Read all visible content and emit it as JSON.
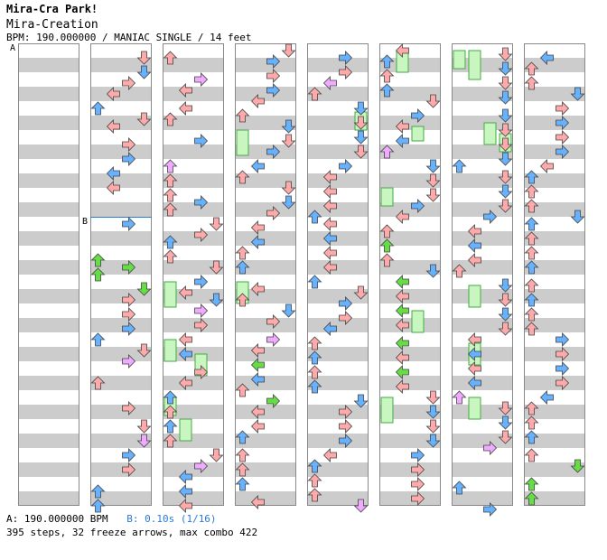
{
  "header": {
    "title": "Mira-Cra Park!",
    "subtitle": "Mira-Creation",
    "info": "BPM: 190.000000 / MANIAC SINGLE / 14 feet"
  },
  "markers": {
    "a": "A",
    "b": "B"
  },
  "footer": {
    "bpm_label": "A: 190.000000 BPM",
    "speed_label": "B: 0.10s (1/16)",
    "stats": "395 steps, 32 freeze arrows, max combo 422"
  },
  "colors": {
    "background": "#ffffff",
    "stripe": "#cccccc",
    "column_border": "#888888",
    "arrow_red": "#ffaaaa",
    "arrow_blue": "#66b2ff",
    "arrow_green": "#66dd44",
    "arrow_violet": "#f0aaff",
    "freeze_body": "#c8f5c0",
    "freeze_border": "#44aa44",
    "speed_text": "#2b7bd6",
    "arrow_stroke": "#444444"
  },
  "chart_data": {
    "type": "step-chart",
    "columns": 8,
    "measures_per_column": 8,
    "rows_per_measure": 16,
    "lanes": [
      "left",
      "down",
      "up",
      "right"
    ],
    "bpm_changes": [
      {
        "measure": 0,
        "label": "A"
      }
    ],
    "speed_changes": [
      {
        "measure": 11,
        "label": "B"
      }
    ],
    "notes": [
      [
        1,
        0,
        2,
        "red"
      ],
      [
        1,
        0,
        6,
        "blue"
      ],
      [
        1,
        0,
        9,
        "red"
      ],
      [
        1,
        0,
        12,
        "red"
      ],
      [
        1,
        1,
        0,
        "blue"
      ],
      [
        1,
        1,
        3,
        "red"
      ],
      [
        1,
        1,
        5,
        "red"
      ],
      [
        1,
        1,
        10,
        "red"
      ],
      [
        1,
        1,
        14,
        "blue"
      ],
      [
        1,
        2,
        2,
        "blue"
      ],
      [
        1,
        2,
        6,
        "red"
      ],
      [
        1,
        3,
        0,
        "blue"
      ],
      [
        1,
        3,
        10,
        "green"
      ],
      [
        1,
        3,
        12,
        "green"
      ],
      [
        1,
        3,
        14,
        "green"
      ],
      [
        1,
        4,
        2,
        "green"
      ],
      [
        1,
        4,
        5,
        "red"
      ],
      [
        1,
        4,
        9,
        "red"
      ],
      [
        1,
        4,
        13,
        "blue"
      ],
      [
        1,
        5,
        0,
        "blue"
      ],
      [
        1,
        5,
        3,
        "red"
      ],
      [
        1,
        5,
        6,
        "violet"
      ],
      [
        1,
        5,
        12,
        "red"
      ],
      [
        1,
        6,
        3,
        "red"
      ],
      [
        1,
        6,
        8,
        "red"
      ],
      [
        1,
        6,
        12,
        "violet"
      ],
      [
        1,
        7,
        0,
        "blue"
      ],
      [
        1,
        7,
        4,
        "red"
      ],
      [
        1,
        7,
        10,
        "blue"
      ],
      [
        1,
        7,
        14,
        "blue"
      ],
      [
        2,
        0,
        2,
        "red"
      ],
      [
        2,
        0,
        8,
        "violet"
      ],
      [
        2,
        0,
        11,
        "red"
      ],
      [
        2,
        1,
        0,
        "red"
      ],
      [
        2,
        1,
        3,
        "red"
      ],
      [
        2,
        1,
        9,
        "blue"
      ],
      [
        2,
        2,
        0,
        "violet"
      ],
      [
        2,
        2,
        4,
        "red"
      ],
      [
        2,
        2,
        8,
        "red"
      ],
      [
        2,
        2,
        10,
        "blue"
      ],
      [
        2,
        2,
        12,
        "red"
      ],
      [
        2,
        3,
        0,
        "red"
      ],
      [
        2,
        3,
        3,
        "red"
      ],
      [
        2,
        3,
        5,
        "blue"
      ],
      [
        2,
        3,
        9,
        "red"
      ],
      [
        2,
        3,
        12,
        "red"
      ],
      [
        2,
        4,
        0,
        "blue"
      ],
      [
        2,
        4,
        3,
        "red"
      ],
      [
        2,
        4,
        5,
        "blue"
      ],
      [
        2,
        4,
        8,
        "violet"
      ],
      [
        2,
        4,
        12,
        "red"
      ],
      [
        2,
        5,
        0,
        "red"
      ],
      [
        2,
        5,
        4,
        "blue"
      ],
      [
        2,
        5,
        9,
        "red"
      ],
      [
        2,
        5,
        12,
        "red"
      ],
      [
        2,
        6,
        0,
        "blue"
      ],
      [
        2,
        6,
        4,
        "red"
      ],
      [
        2,
        6,
        8,
        "blue"
      ],
      [
        2,
        6,
        12,
        "red"
      ],
      [
        2,
        7,
        0,
        "red"
      ],
      [
        2,
        7,
        3,
        "violet"
      ],
      [
        2,
        7,
        6,
        "blue"
      ],
      [
        2,
        7,
        10,
        "blue"
      ],
      [
        2,
        7,
        14,
        "red"
      ],
      [
        3,
        0,
        0,
        "red"
      ],
      [
        3,
        0,
        3,
        "blue"
      ],
      [
        3,
        0,
        7,
        "red"
      ],
      [
        3,
        0,
        11,
        "blue"
      ],
      [
        3,
        0,
        14,
        "red"
      ],
      [
        3,
        1,
        2,
        "red"
      ],
      [
        3,
        1,
        5,
        "blue"
      ],
      [
        3,
        1,
        9,
        "red"
      ],
      [
        3,
        1,
        12,
        "blue"
      ],
      [
        3,
        2,
        0,
        "blue"
      ],
      [
        3,
        2,
        3,
        "red"
      ],
      [
        3,
        2,
        6,
        "red"
      ],
      [
        3,
        2,
        10,
        "blue"
      ],
      [
        3,
        2,
        13,
        "red"
      ],
      [
        3,
        3,
        1,
        "red"
      ],
      [
        3,
        3,
        5,
        "blue"
      ],
      [
        3,
        3,
        8,
        "red"
      ],
      [
        3,
        3,
        12,
        "blue"
      ],
      [
        3,
        4,
        2,
        "red"
      ],
      [
        3,
        4,
        5,
        "red"
      ],
      [
        3,
        4,
        8,
        "blue"
      ],
      [
        3,
        4,
        11,
        "red"
      ],
      [
        3,
        5,
        0,
        "violet"
      ],
      [
        3,
        5,
        3,
        "red"
      ],
      [
        3,
        5,
        7,
        "green"
      ],
      [
        3,
        5,
        11,
        "blue"
      ],
      [
        3,
        5,
        14,
        "red"
      ],
      [
        3,
        6,
        1,
        "green"
      ],
      [
        3,
        6,
        4,
        "red"
      ],
      [
        3,
        6,
        8,
        "red"
      ],
      [
        3,
        6,
        11,
        "blue"
      ],
      [
        3,
        7,
        0,
        "red"
      ],
      [
        3,
        7,
        4,
        "red"
      ],
      [
        3,
        7,
        8,
        "blue"
      ],
      [
        3,
        7,
        13,
        "red"
      ],
      [
        4,
        0,
        2,
        "blue"
      ],
      [
        4,
        0,
        6,
        "red"
      ],
      [
        4,
        0,
        9,
        "violet"
      ],
      [
        4,
        0,
        12,
        "red"
      ],
      [
        4,
        1,
        0,
        "blue"
      ],
      [
        4,
        1,
        4,
        "red"
      ],
      [
        4,
        1,
        8,
        "blue"
      ],
      [
        4,
        1,
        12,
        "red"
      ],
      [
        4,
        2,
        0,
        "blue"
      ],
      [
        4,
        2,
        3,
        "red"
      ],
      [
        4,
        2,
        7,
        "red"
      ],
      [
        4,
        2,
        11,
        "red"
      ],
      [
        4,
        2,
        14,
        "blue"
      ],
      [
        4,
        3,
        0,
        "red"
      ],
      [
        4,
        3,
        4,
        "blue"
      ],
      [
        4,
        3,
        8,
        "red"
      ],
      [
        4,
        3,
        12,
        "red"
      ],
      [
        4,
        4,
        0,
        "blue"
      ],
      [
        4,
        4,
        3,
        "red"
      ],
      [
        4,
        4,
        6,
        "blue"
      ],
      [
        4,
        4,
        10,
        "red"
      ],
      [
        4,
        4,
        13,
        "blue"
      ],
      [
        4,
        5,
        1,
        "red"
      ],
      [
        4,
        5,
        5,
        "blue"
      ],
      [
        4,
        5,
        9,
        "red"
      ],
      [
        4,
        5,
        13,
        "blue"
      ],
      [
        4,
        6,
        1,
        "blue"
      ],
      [
        4,
        6,
        4,
        "red"
      ],
      [
        4,
        6,
        8,
        "red"
      ],
      [
        4,
        6,
        12,
        "blue"
      ],
      [
        4,
        7,
        0,
        "red"
      ],
      [
        4,
        7,
        3,
        "blue"
      ],
      [
        4,
        7,
        7,
        "red"
      ],
      [
        4,
        7,
        11,
        "red"
      ],
      [
        4,
        7,
        14,
        "violet"
      ],
      [
        5,
        0,
        0,
        "red"
      ],
      [
        5,
        0,
        3,
        "blue"
      ],
      [
        5,
        0,
        7,
        "red"
      ],
      [
        5,
        0,
        11,
        "blue"
      ],
      [
        5,
        0,
        14,
        "red"
      ],
      [
        5,
        1,
        2,
        "blue"
      ],
      [
        5,
        1,
        5,
        "red"
      ],
      [
        5,
        1,
        9,
        "blue"
      ],
      [
        5,
        1,
        12,
        "violet"
      ],
      [
        5,
        2,
        0,
        "blue"
      ],
      [
        5,
        2,
        4,
        "red"
      ],
      [
        5,
        2,
        8,
        "red"
      ],
      [
        5,
        2,
        11,
        "blue"
      ],
      [
        5,
        2,
        14,
        "red"
      ],
      [
        5,
        3,
        2,
        "red"
      ],
      [
        5,
        3,
        6,
        "green"
      ],
      [
        5,
        3,
        10,
        "red"
      ],
      [
        5,
        3,
        13,
        "blue"
      ],
      [
        5,
        4,
        0,
        "green"
      ],
      [
        5,
        4,
        4,
        "red"
      ],
      [
        5,
        4,
        8,
        "green"
      ],
      [
        5,
        4,
        12,
        "red"
      ],
      [
        5,
        5,
        1,
        "green"
      ],
      [
        5,
        5,
        5,
        "red"
      ],
      [
        5,
        5,
        9,
        "green"
      ],
      [
        5,
        5,
        13,
        "red"
      ],
      [
        5,
        6,
        0,
        "red"
      ],
      [
        5,
        6,
        4,
        "blue"
      ],
      [
        5,
        6,
        8,
        "red"
      ],
      [
        5,
        6,
        12,
        "blue"
      ],
      [
        5,
        7,
        0,
        "blue"
      ],
      [
        5,
        7,
        4,
        "red"
      ],
      [
        5,
        7,
        8,
        "red"
      ],
      [
        5,
        7,
        12,
        "red"
      ],
      [
        6,
        0,
        1,
        "red"
      ],
      [
        6,
        0,
        5,
        "blue"
      ],
      [
        6,
        0,
        9,
        "red"
      ],
      [
        6,
        0,
        13,
        "blue"
      ],
      [
        6,
        1,
        2,
        "blue"
      ],
      [
        6,
        1,
        6,
        "red"
      ],
      [
        6,
        1,
        10,
        "red"
      ],
      [
        6,
        1,
        14,
        "blue"
      ],
      [
        6,
        2,
        0,
        "blue"
      ],
      [
        6,
        2,
        3,
        "red"
      ],
      [
        6,
        2,
        7,
        "blue"
      ],
      [
        6,
        2,
        11,
        "red"
      ],
      [
        6,
        2,
        14,
        "blue"
      ],
      [
        6,
        3,
        2,
        "red"
      ],
      [
        6,
        3,
        6,
        "blue"
      ],
      [
        6,
        3,
        10,
        "red"
      ],
      [
        6,
        3,
        13,
        "red"
      ],
      [
        6,
        4,
        1,
        "blue"
      ],
      [
        6,
        4,
        5,
        "red"
      ],
      [
        6,
        4,
        9,
        "blue"
      ],
      [
        6,
        4,
        13,
        "red"
      ],
      [
        6,
        5,
        0,
        "red"
      ],
      [
        6,
        5,
        4,
        "blue"
      ],
      [
        6,
        5,
        8,
        "red"
      ],
      [
        6,
        5,
        12,
        "blue"
      ],
      [
        6,
        6,
        0,
        "violet"
      ],
      [
        6,
        6,
        3,
        "red"
      ],
      [
        6,
        6,
        7,
        "blue"
      ],
      [
        6,
        6,
        11,
        "red"
      ],
      [
        6,
        6,
        14,
        "violet"
      ],
      [
        6,
        7,
        9,
        "blue"
      ],
      [
        6,
        7,
        15,
        "blue"
      ],
      [
        7,
        0,
        2,
        "blue"
      ],
      [
        7,
        0,
        5,
        "red"
      ],
      [
        7,
        0,
        9,
        "red"
      ],
      [
        7,
        0,
        12,
        "blue"
      ],
      [
        7,
        1,
        0,
        "red"
      ],
      [
        7,
        1,
        4,
        "blue"
      ],
      [
        7,
        1,
        8,
        "red"
      ],
      [
        7,
        1,
        12,
        "blue"
      ],
      [
        7,
        2,
        0,
        "red"
      ],
      [
        7,
        2,
        3,
        "blue"
      ],
      [
        7,
        2,
        7,
        "red"
      ],
      [
        7,
        2,
        11,
        "red"
      ],
      [
        7,
        2,
        14,
        "blue"
      ],
      [
        7,
        3,
        0,
        "blue"
      ],
      [
        7,
        3,
        4,
        "red"
      ],
      [
        7,
        3,
        8,
        "red"
      ],
      [
        7,
        3,
        12,
        "blue"
      ],
      [
        7,
        4,
        1,
        "red"
      ],
      [
        7,
        4,
        5,
        "blue"
      ],
      [
        7,
        4,
        9,
        "red"
      ],
      [
        7,
        4,
        13,
        "red"
      ],
      [
        7,
        5,
        0,
        "blue"
      ],
      [
        7,
        5,
        4,
        "red"
      ],
      [
        7,
        5,
        8,
        "blue"
      ],
      [
        7,
        5,
        12,
        "red"
      ],
      [
        7,
        6,
        0,
        "blue"
      ],
      [
        7,
        6,
        3,
        "red"
      ],
      [
        7,
        6,
        7,
        "red"
      ],
      [
        7,
        6,
        11,
        "blue"
      ],
      [
        7,
        7,
        0,
        "red"
      ],
      [
        7,
        7,
        3,
        "green"
      ],
      [
        7,
        7,
        8,
        "green"
      ],
      [
        7,
        7,
        12,
        "green"
      ]
    ],
    "freezes": [
      [
        1,
        3,
        12,
        3,
        14
      ],
      [
        2,
        4,
        0,
        5,
        4
      ],
      [
        2,
        5,
        6,
        6,
        4
      ],
      [
        3,
        1,
        10,
        1,
        14
      ],
      [
        3,
        4,
        0,
        4,
        6
      ],
      [
        4,
        1,
        2,
        1,
        6
      ],
      [
        5,
        0,
        6,
        0,
        12
      ],
      [
        5,
        2,
        4,
        3,
        0
      ],
      [
        5,
        5,
        2,
        5,
        10
      ],
      [
        5,
        6,
        0,
        6,
        6
      ],
      [
        6,
        0,
        0,
        0,
        4
      ],
      [
        6,
        1,
        2,
        1,
        8
      ],
      [
        6,
        2,
        10,
        2,
        14
      ],
      [
        6,
        4,
        0,
        4,
        6
      ]
    ]
  }
}
